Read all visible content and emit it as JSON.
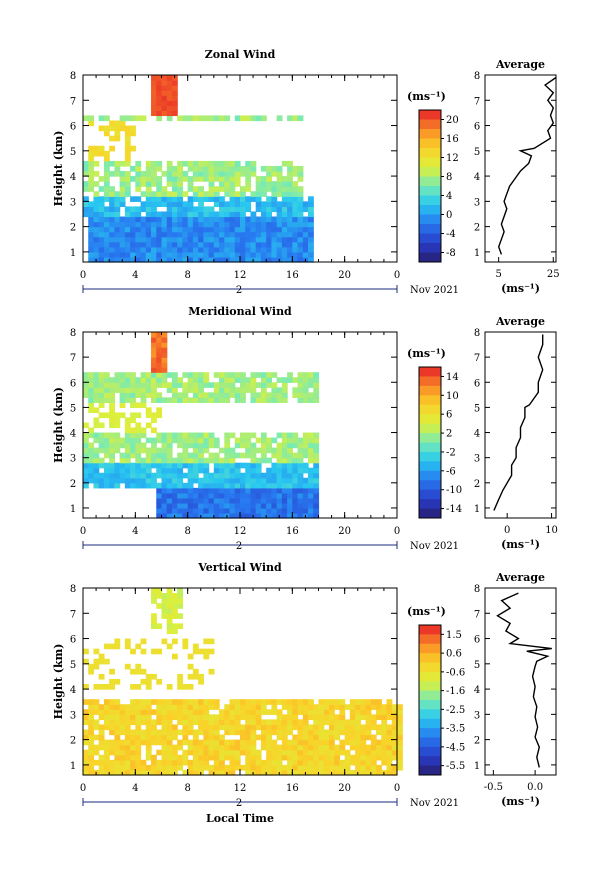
{
  "chart_data": [
    {
      "type": "heatmap",
      "title": "Zonal Wind",
      "ylabel": "Height (km)",
      "xlim": [
        0,
        24
      ],
      "ylim": [
        0.6,
        8
      ],
      "xticks": [
        "0",
        "4",
        "8",
        "12",
        "16",
        "20",
        "0"
      ],
      "yticks": [
        "1",
        "2",
        "3",
        "4",
        "5",
        "6",
        "7",
        "8"
      ],
      "date_label": "2",
      "date_suffix": "Nov 2021",
      "colorbar": {
        "unit": "(ms⁻¹)",
        "ticks": [
          "20",
          "16",
          "12",
          "8",
          "4",
          "0",
          "-4",
          "-8"
        ],
        "vmin": -10,
        "vmax": 22
      },
      "average": {
        "title": "Average",
        "xlabel": "(ms⁻¹)",
        "xticks": [
          "5",
          "25"
        ],
        "xlim": [
          0,
          26
        ],
        "profile": [
          [
            6,
            0.9
          ],
          [
            5,
            1.2
          ],
          [
            6,
            1.5
          ],
          [
            7,
            1.8
          ],
          [
            6,
            2.1
          ],
          [
            7,
            2.4
          ],
          [
            8,
            2.7
          ],
          [
            7,
            3.0
          ],
          [
            8,
            3.3
          ],
          [
            9,
            3.6
          ],
          [
            11,
            3.9
          ],
          [
            13,
            4.2
          ],
          [
            16,
            4.5
          ],
          [
            17,
            4.8
          ],
          [
            13,
            5.0
          ],
          [
            18,
            5.1
          ],
          [
            24,
            5.5
          ],
          [
            23,
            5.8
          ],
          [
            25,
            6.1
          ],
          [
            24,
            6.4
          ],
          [
            25,
            6.7
          ],
          [
            23,
            7.0
          ],
          [
            25,
            7.3
          ],
          [
            22,
            7.6
          ],
          [
            26,
            7.9
          ]
        ]
      }
    },
    {
      "type": "heatmap",
      "title": "Meridional Wind",
      "ylabel": "Height (km)",
      "xlim": [
        0,
        24
      ],
      "ylim": [
        0.6,
        8
      ],
      "xticks": [
        "0",
        "4",
        "8",
        "12",
        "16",
        "20",
        "0"
      ],
      "yticks": [
        "1",
        "2",
        "3",
        "4",
        "5",
        "6",
        "7",
        "8"
      ],
      "date_label": "2",
      "date_suffix": "Nov 2021",
      "colorbar": {
        "unit": "(ms⁻¹)",
        "ticks": [
          "14",
          "10",
          "6",
          "2",
          "-2",
          "-6",
          "-10",
          "-14"
        ],
        "vmin": -16,
        "vmax": 16
      },
      "average": {
        "title": "Average",
        "xlabel": "(ms⁻¹)",
        "xticks": [
          "0",
          "10"
        ],
        "xlim": [
          -5,
          11
        ],
        "profile": [
          [
            -3,
            0.9
          ],
          [
            -2,
            1.3
          ],
          [
            -1,
            1.7
          ],
          [
            0,
            2.0
          ],
          [
            1,
            2.3
          ],
          [
            1,
            2.7
          ],
          [
            2,
            3.0
          ],
          [
            2,
            3.4
          ],
          [
            3,
            3.8
          ],
          [
            3,
            4.2
          ],
          [
            4,
            4.6
          ],
          [
            4,
            5.0
          ],
          [
            5,
            5.1
          ],
          [
            7,
            5.6
          ],
          [
            7,
            6.0
          ],
          [
            8,
            6.5
          ],
          [
            7,
            7.0
          ],
          [
            8,
            7.5
          ],
          [
            8,
            7.9
          ]
        ]
      }
    },
    {
      "type": "heatmap",
      "title": "Vertical Wind",
      "ylabel": "Height (km)",
      "xlabel": "Local Time",
      "xlim": [
        0,
        24
      ],
      "ylim": [
        0.6,
        8
      ],
      "xticks": [
        "0",
        "4",
        "8",
        "12",
        "16",
        "20",
        "0"
      ],
      "yticks": [
        "1",
        "2",
        "3",
        "4",
        "5",
        "6",
        "7",
        "8"
      ],
      "date_label": "2",
      "date_suffix": "Nov 2021",
      "colorbar": {
        "unit": "(ms⁻¹)",
        "ticks": [
          "1.5",
          "0.6",
          "-0.6",
          "-1.6",
          "-2.5",
          "-3.5",
          "-4.5",
          "-5.5"
        ],
        "vmin": -6,
        "vmax": 2
      },
      "average": {
        "title": "Average",
        "xlabel": "(ms⁻¹)",
        "xticks": [
          "-0.5",
          "0.0"
        ],
        "xlim": [
          -0.6,
          0.25
        ],
        "profile": [
          [
            0.05,
            0.9
          ],
          [
            0.02,
            1.3
          ],
          [
            0.05,
            1.7
          ],
          [
            0.0,
            2.1
          ],
          [
            0.03,
            2.5
          ],
          [
            0.0,
            2.9
          ],
          [
            0.02,
            3.3
          ],
          [
            -0.02,
            3.7
          ],
          [
            0.0,
            4.1
          ],
          [
            -0.03,
            4.5
          ],
          [
            0.0,
            4.9
          ],
          [
            0.02,
            5.1
          ],
          [
            0.15,
            5.3
          ],
          [
            -0.1,
            5.5
          ],
          [
            0.2,
            5.6
          ],
          [
            -0.3,
            5.8
          ],
          [
            -0.2,
            6.0
          ],
          [
            -0.35,
            6.3
          ],
          [
            -0.3,
            6.6
          ],
          [
            -0.45,
            6.9
          ],
          [
            -0.3,
            7.2
          ],
          [
            -0.4,
            7.5
          ],
          [
            -0.2,
            7.8
          ]
        ]
      }
    }
  ]
}
